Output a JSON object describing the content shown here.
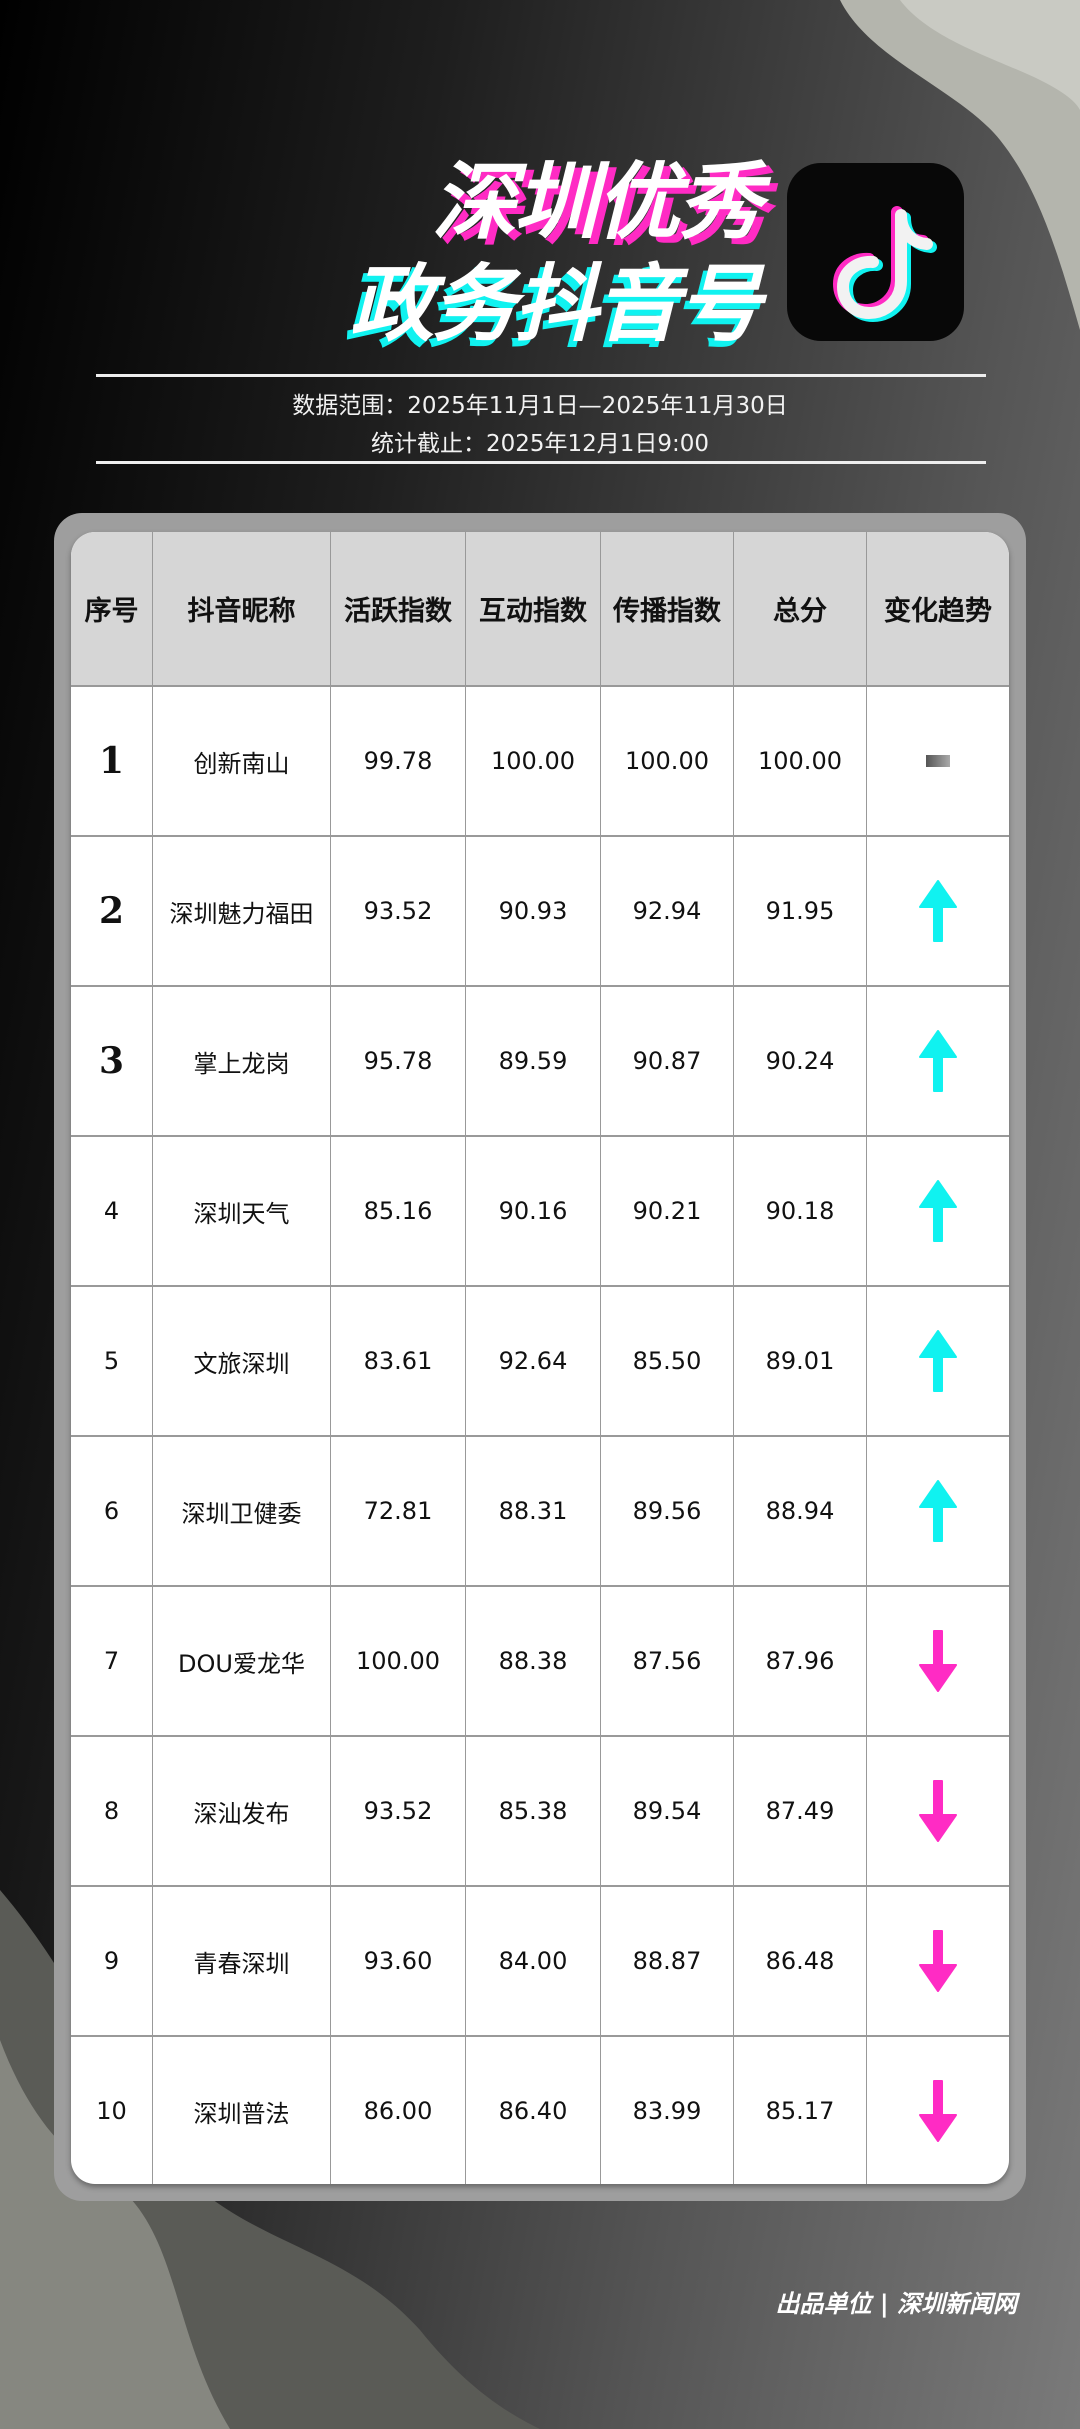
{
  "header": {
    "title_line1": "深圳优秀",
    "title_line2": "政务抖音号",
    "logo": "douyin-logo",
    "data_range": "数据范围：2025年11月1日—2025年11月30日",
    "cutoff": "统计截止：2025年12月1日9:00"
  },
  "colors": {
    "up": "#10f2f0",
    "down": "#ff2bc4",
    "flat": "#777777",
    "title_pink": "#ff2bc4",
    "title_cyan": "#10f2f0"
  },
  "table": {
    "columns": [
      "序号",
      "抖音昵称",
      "活跃指数",
      "互动指数",
      "传播指数",
      "总分",
      "变化趋势"
    ],
    "rows": [
      {
        "rank": "1",
        "name": "创新南山",
        "active": "99.78",
        "interact": "100.00",
        "spread": "100.00",
        "total": "100.00",
        "trend": "flat"
      },
      {
        "rank": "2",
        "name": "深圳魅力福田",
        "active": "93.52",
        "interact": "90.93",
        "spread": "92.94",
        "total": "91.95",
        "trend": "up"
      },
      {
        "rank": "3",
        "name": "掌上龙岗",
        "active": "95.78",
        "interact": "89.59",
        "spread": "90.87",
        "total": "90.24",
        "trend": "up"
      },
      {
        "rank": "4",
        "name": "深圳天气",
        "active": "85.16",
        "interact": "90.16",
        "spread": "90.21",
        "total": "90.18",
        "trend": "up"
      },
      {
        "rank": "5",
        "name": "文旅深圳",
        "active": "83.61",
        "interact": "92.64",
        "spread": "85.50",
        "total": "89.01",
        "trend": "up"
      },
      {
        "rank": "6",
        "name": "深圳卫健委",
        "active": "72.81",
        "interact": "88.31",
        "spread": "89.56",
        "total": "88.94",
        "trend": "up"
      },
      {
        "rank": "7",
        "name": "DOU爱龙华",
        "active": "100.00",
        "interact": "88.38",
        "spread": "87.56",
        "total": "87.96",
        "trend": "down"
      },
      {
        "rank": "8",
        "name": "深汕发布",
        "active": "93.52",
        "interact": "85.38",
        "spread": "89.54",
        "total": "87.49",
        "trend": "down"
      },
      {
        "rank": "9",
        "name": "青春深圳",
        "active": "93.60",
        "interact": "84.00",
        "spread": "88.87",
        "total": "86.48",
        "trend": "down"
      },
      {
        "rank": "10",
        "name": "深圳普法",
        "active": "86.00",
        "interact": "86.40",
        "spread": "83.99",
        "total": "85.17",
        "trend": "down"
      }
    ]
  },
  "footer": {
    "producer": "出品单位 | 深圳新闻网"
  }
}
